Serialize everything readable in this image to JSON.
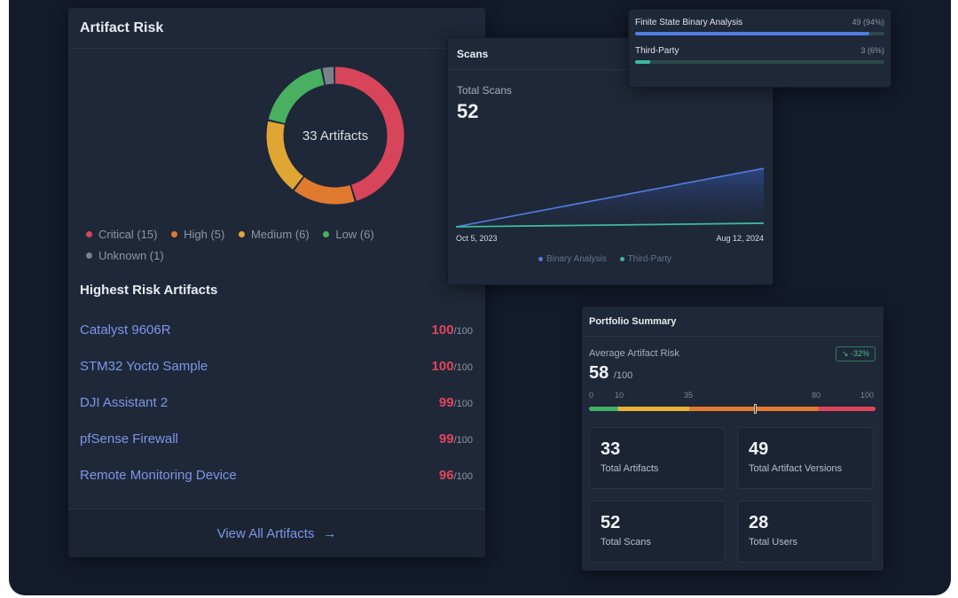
{
  "artifact_risk": {
    "title": "Artifact Risk",
    "donut_center": "33 Artifacts",
    "segments": [
      {
        "label": "Critical (15)",
        "count": 15,
        "color": "#d8455b"
      },
      {
        "label": "High (5)",
        "count": 5,
        "color": "#e07a2f"
      },
      {
        "label": "Medium (6)",
        "count": 6,
        "color": "#e0a634"
      },
      {
        "label": "Low (6)",
        "count": 6,
        "color": "#48b060"
      },
      {
        "label": "Unknown (1)",
        "count": 1,
        "color": "#7a808c"
      }
    ],
    "highest_title": "Highest Risk Artifacts",
    "artifacts": [
      {
        "name": "Catalyst 9606R",
        "score": "100",
        "max": "/100"
      },
      {
        "name": "STM32 Yocto Sample",
        "score": "100",
        "max": "/100"
      },
      {
        "name": "DJI Assistant 2",
        "score": "99",
        "max": "/100"
      },
      {
        "name": "pfSense Firewall",
        "score": "99",
        "max": "/100"
      },
      {
        "name": "Remote Monitoring Device",
        "score": "96",
        "max": "/100"
      }
    ],
    "view_all_label": "View All Artifacts",
    "arrow_glyph": "→"
  },
  "scans": {
    "title": "Scans",
    "total_label": "Total Scans",
    "total_value": "52",
    "start_date": "Oct 5, 2023",
    "end_date": "Aug 12, 2024",
    "legend": [
      {
        "label": "Binary Analysis",
        "color": "#4f7de0"
      },
      {
        "label": "Third-Party",
        "color": "#3fb8a0"
      }
    ]
  },
  "chart_data": {
    "type": "area",
    "title": "Scans",
    "x": [
      "Oct 5, 2023",
      "Aug 12, 2024"
    ],
    "series": [
      {
        "name": "Binary Analysis",
        "values": [
          0,
          49
        ]
      },
      {
        "name": "Third-Party",
        "values": [
          0,
          3
        ]
      }
    ],
    "ylim": [
      0,
      52
    ],
    "xlabel": "",
    "ylabel": ""
  },
  "sources": [
    {
      "name": "Finite State Binary Analysis",
      "count": "49 (94%)",
      "percent": 94,
      "color": "#4f7de0"
    },
    {
      "name": "Third-Party",
      "count": "3 (6%)",
      "percent": 6,
      "color": "#3fb8a0"
    }
  ],
  "portfolio": {
    "title": "Portfolio Summary",
    "avg_label": "Average Artifact Risk",
    "avg_value": "58",
    "avg_max": "/100",
    "avg_numeric": 58,
    "trend": "↘ -32%",
    "scale": [
      "0",
      "10",
      "35",
      "80",
      "100"
    ],
    "stats": [
      {
        "value": "33",
        "label": "Total Artifacts"
      },
      {
        "value": "49",
        "label": "Total Artifact Versions"
      },
      {
        "value": "52",
        "label": "Total Scans"
      },
      {
        "value": "28",
        "label": "Total Users"
      }
    ]
  }
}
